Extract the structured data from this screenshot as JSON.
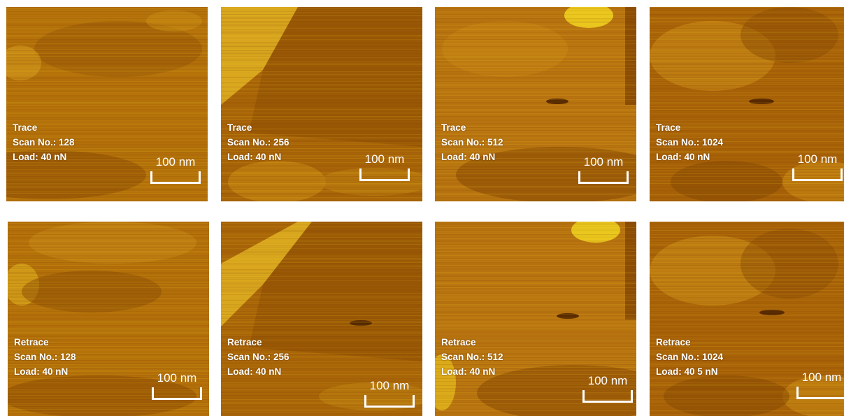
{
  "panels": [
    {
      "mode": "Trace",
      "scan": "Scan No.: 128",
      "load": "Load: 40 nN",
      "scale": "100 nm"
    },
    {
      "mode": "Trace",
      "scan": "Scan No.: 256",
      "load": "Load: 40 nN",
      "scale": "100 nm"
    },
    {
      "mode": "Trace",
      "scan": "Scan No.: 512",
      "load": "Load: 40 nN",
      "scale": "100 nm"
    },
    {
      "mode": "Trace",
      "scan": "Scan No.: 1024",
      "load": "Load: 40 nN",
      "scale": "100 nm"
    },
    {
      "mode": "Retrace",
      "scan": "Scan No.: 128",
      "load": "Load: 40 nN",
      "scale": "100 nm"
    },
    {
      "mode": "Retrace",
      "scan": "Scan No.: 256",
      "load": "Load: 40 nN",
      "scale": "100 nm"
    },
    {
      "mode": "Retrace",
      "scan": "Scan No.: 512",
      "load": "Load: 40 nN",
      "scale": "100 nm"
    },
    {
      "mode": "Retrace",
      "scan": "Scan No.: 1024",
      "load": "Load: 40 5 nN",
      "scale": "100 nm"
    }
  ],
  "colors": {
    "dark": "#7a3e02",
    "base": "#b06a08",
    "bright": "#f0d020"
  }
}
